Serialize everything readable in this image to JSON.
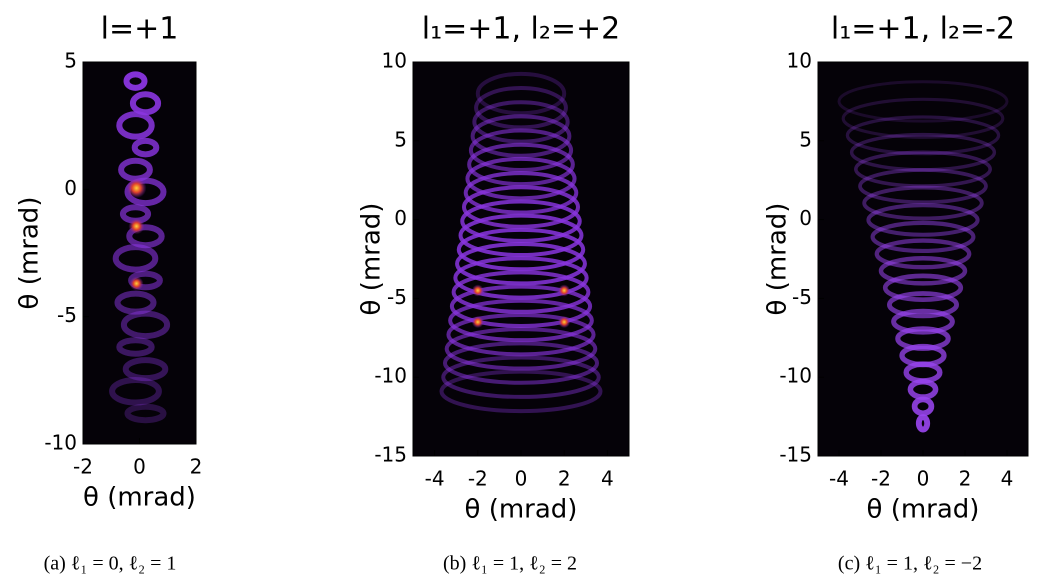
{
  "chart_data": [
    {
      "type": "heatmap",
      "title": "l=+1",
      "xlabel": "θ (mrad)",
      "ylabel": "θ (mrad)",
      "xlim": [
        -2,
        2
      ],
      "ylim": [
        -10,
        5
      ],
      "xticks": [
        -2,
        0,
        2
      ],
      "yticks": [
        -10,
        -5,
        0,
        5
      ],
      "caption": "(a) ℓ₁ = 0, ℓ₂ = 1"
    },
    {
      "type": "heatmap",
      "title": "l₁=+1, l₂=+2",
      "xlabel": "θ (mrad)",
      "ylabel": "θ (mrad)",
      "xlim": [
        -5,
        5
      ],
      "ylim": [
        -15,
        10
      ],
      "xticks": [
        -4,
        -2,
        0,
        2,
        4
      ],
      "yticks": [
        -15,
        -10,
        -5,
        0,
        5,
        10
      ],
      "caption": "(b) ℓ₁ = 1, ℓ₂ = 2"
    },
    {
      "type": "heatmap",
      "title": "l₁=+1, l₂=-2",
      "xlabel": "θ (mrad)",
      "ylabel": "θ (mrad)",
      "xlim": [
        -5,
        5
      ],
      "ylim": [
        -15,
        10
      ],
      "xticks": [
        -4,
        -2,
        0,
        2,
        4
      ],
      "yticks": [
        -15,
        -10,
        -5,
        0,
        5,
        10
      ],
      "caption": "(c) ℓ₁ = 1, ℓ₂ = −2"
    }
  ]
}
